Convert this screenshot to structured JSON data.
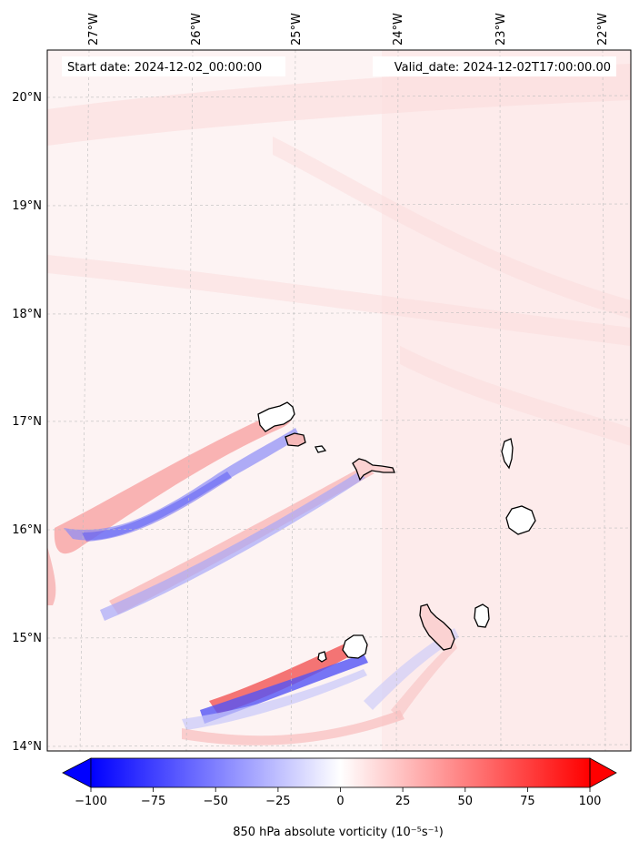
{
  "map": {
    "start_date_text": "Start date: 2024-12-02_00:00:00",
    "valid_date_text": "Valid_date: 2024-12-02T17:00:00.00",
    "lon_range": [
      -27.35,
      -21.7
    ],
    "lat_range": [
      13.95,
      20.45
    ],
    "lon_ticks": [
      {
        "value": -27,
        "label": "27°W"
      },
      {
        "value": -26,
        "label": "26°W"
      },
      {
        "value": -25,
        "label": "25°W"
      },
      {
        "value": -24,
        "label": "24°W"
      },
      {
        "value": -23,
        "label": "23°W"
      },
      {
        "value": -22,
        "label": "22°W"
      }
    ],
    "lat_ticks": [
      {
        "value": 20,
        "label": "20°N"
      },
      {
        "value": 19,
        "label": "19°N"
      },
      {
        "value": 18,
        "label": "18°N"
      },
      {
        "value": 17,
        "label": "17°N"
      },
      {
        "value": 16,
        "label": "16°N"
      },
      {
        "value": 15,
        "label": "15°N"
      },
      {
        "value": 14,
        "label": "14°N"
      }
    ]
  },
  "colorbar": {
    "label": "850 hPa absolute vorticity (10⁻⁵s⁻¹)",
    "min": -100,
    "max": 100,
    "ticks": [
      {
        "value": -100,
        "label": "−100"
      },
      {
        "value": -75,
        "label": "−75"
      },
      {
        "value": -50,
        "label": "−50"
      },
      {
        "value": -25,
        "label": "−25"
      },
      {
        "value": 0,
        "label": "0"
      },
      {
        "value": 25,
        "label": "25"
      },
      {
        "value": 50,
        "label": "50"
      },
      {
        "value": 75,
        "label": "75"
      },
      {
        "value": 100,
        "label": "100"
      }
    ],
    "colors": {
      "negative": "#0000ff",
      "neutral": "#ffffff",
      "positive": "#ff0000"
    }
  }
}
